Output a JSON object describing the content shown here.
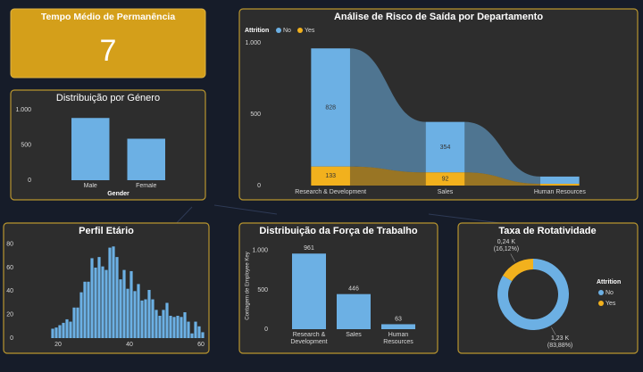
{
  "kpi": {
    "title": "Tempo Médio de Permanência",
    "value": 7
  },
  "chart_data": [
    {
      "type": "bar",
      "title": "Distribuição por Género",
      "x_label": "Gender",
      "categories": [
        "Male",
        "Female"
      ],
      "values": [
        882,
        588
      ],
      "color": "#6cb0e4",
      "ylim": [
        0,
        1100
      ],
      "yticks": [
        0,
        500,
        {
          "value": 1000,
          "label": "1.000"
        }
      ],
      "grid": false,
      "data_labels": false
    },
    {
      "type": "ribbon",
      "title": "Análise de Risco de Saída por Departamento",
      "legend_title": "Attrition",
      "categories": [
        "Research & Development",
        "Sales",
        "Human Resources"
      ],
      "series": [
        {
          "name": "No",
          "color": "#6cb0e4",
          "values": [
            828,
            354,
            51
          ]
        },
        {
          "name": "Yes",
          "color": "#f2b11d",
          "values": [
            133,
            92,
            12
          ]
        }
      ],
      "ylim": [
        0,
        1000
      ],
      "yticks": [
        0,
        500,
        {
          "value": 1000,
          "label": "1.000"
        }
      ],
      "grid": false
    },
    {
      "type": "histogram",
      "title": "Perfil Etário",
      "bins": [
        18,
        19,
        20,
        21,
        22,
        23,
        24,
        25,
        26,
        27,
        28,
        29,
        30,
        31,
        32,
        33,
        34,
        35,
        36,
        37,
        38,
        39,
        40,
        41,
        42,
        43,
        44,
        45,
        46,
        47,
        48,
        49,
        50,
        51,
        52,
        53,
        54,
        55,
        56,
        57,
        58,
        59,
        60,
        61
      ],
      "values": [
        8,
        9,
        11,
        13,
        16,
        14,
        26,
        26,
        39,
        48,
        48,
        68,
        60,
        69,
        61,
        58,
        77,
        78,
        69,
        50,
        58,
        42,
        57,
        40,
        46,
        32,
        33,
        41,
        33,
        24,
        19,
        24,
        30,
        19,
        18,
        19,
        18,
        22,
        14,
        4,
        14,
        10,
        5
      ],
      "color": "#6cb0e4",
      "xlim": [
        10,
        61
      ],
      "xticks": [
        20,
        40,
        60
      ],
      "ylim": [
        0,
        82
      ],
      "yticks": [
        0,
        20,
        40,
        60,
        80
      ],
      "grid": false
    },
    {
      "type": "bar",
      "title": "Distribuição da Força de Trabalho",
      "y_label": "Contagem de Employee Key",
      "categories": [
        "Research & Development",
        "Sales",
        "Human Resources"
      ],
      "values": [
        961,
        446,
        63
      ],
      "color": "#6cb0e4",
      "ylim": [
        0,
        1100
      ],
      "yticks": [
        0,
        500,
        {
          "value": 1000,
          "label": "1.000"
        }
      ],
      "grid": false,
      "data_labels": true
    },
    {
      "type": "pie",
      "title": "Taxa de Rotatividade",
      "legend_title": "Attrition",
      "donut": true,
      "categories": [
        "No",
        "Yes"
      ],
      "values": [
        1233,
        237
      ],
      "value_labels": [
        "1,23 K (83,88%)",
        "0,24 K (16,12%)"
      ],
      "colors": [
        "#6cb0e4",
        "#f2b11d"
      ]
    }
  ]
}
